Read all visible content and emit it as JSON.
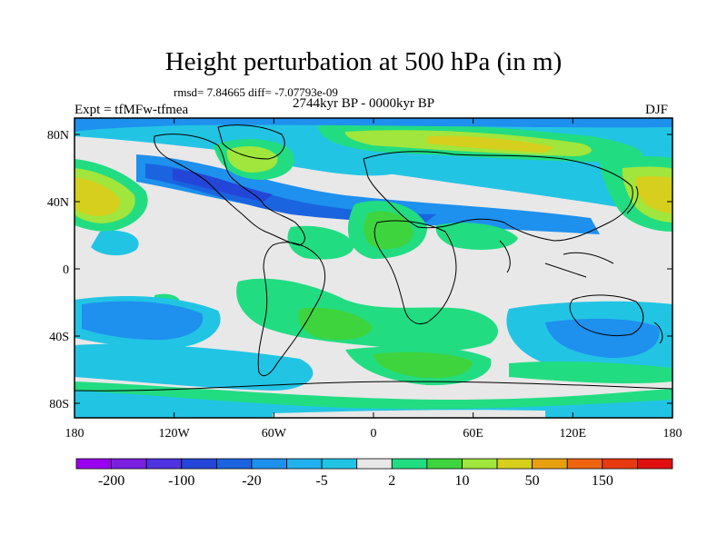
{
  "title": "Height perturbation at 500 hPa (in m)",
  "stats": "rmsd= 7.84665 diff= -7.07793e-09",
  "period": "2744kyr BP - 0000kyr BP",
  "experiment": "Expt = tfMFw-tfmea",
  "season": "DJF",
  "lat_ticks": [
    "80N",
    "40N",
    "0",
    "40S",
    "80S"
  ],
  "lon_ticks": [
    "180",
    "120W",
    "60W",
    "0",
    "60E",
    "120E",
    "180"
  ],
  "colorbar": {
    "labels": [
      "-200",
      "-100",
      "-20",
      "-5",
      "2",
      "10",
      "50",
      "150"
    ],
    "colors": [
      "#9a00f0",
      "#7a1ee0",
      "#4f32e0",
      "#2446d8",
      "#1a64e0",
      "#1e90ee",
      "#22b0ee",
      "#22c4e4",
      "#e8e8e8",
      "#22dc82",
      "#3ed43e",
      "#a0e63c",
      "#d6cf1e",
      "#e8a010",
      "#ee6410",
      "#e83a10",
      "#e01010"
    ]
  }
}
